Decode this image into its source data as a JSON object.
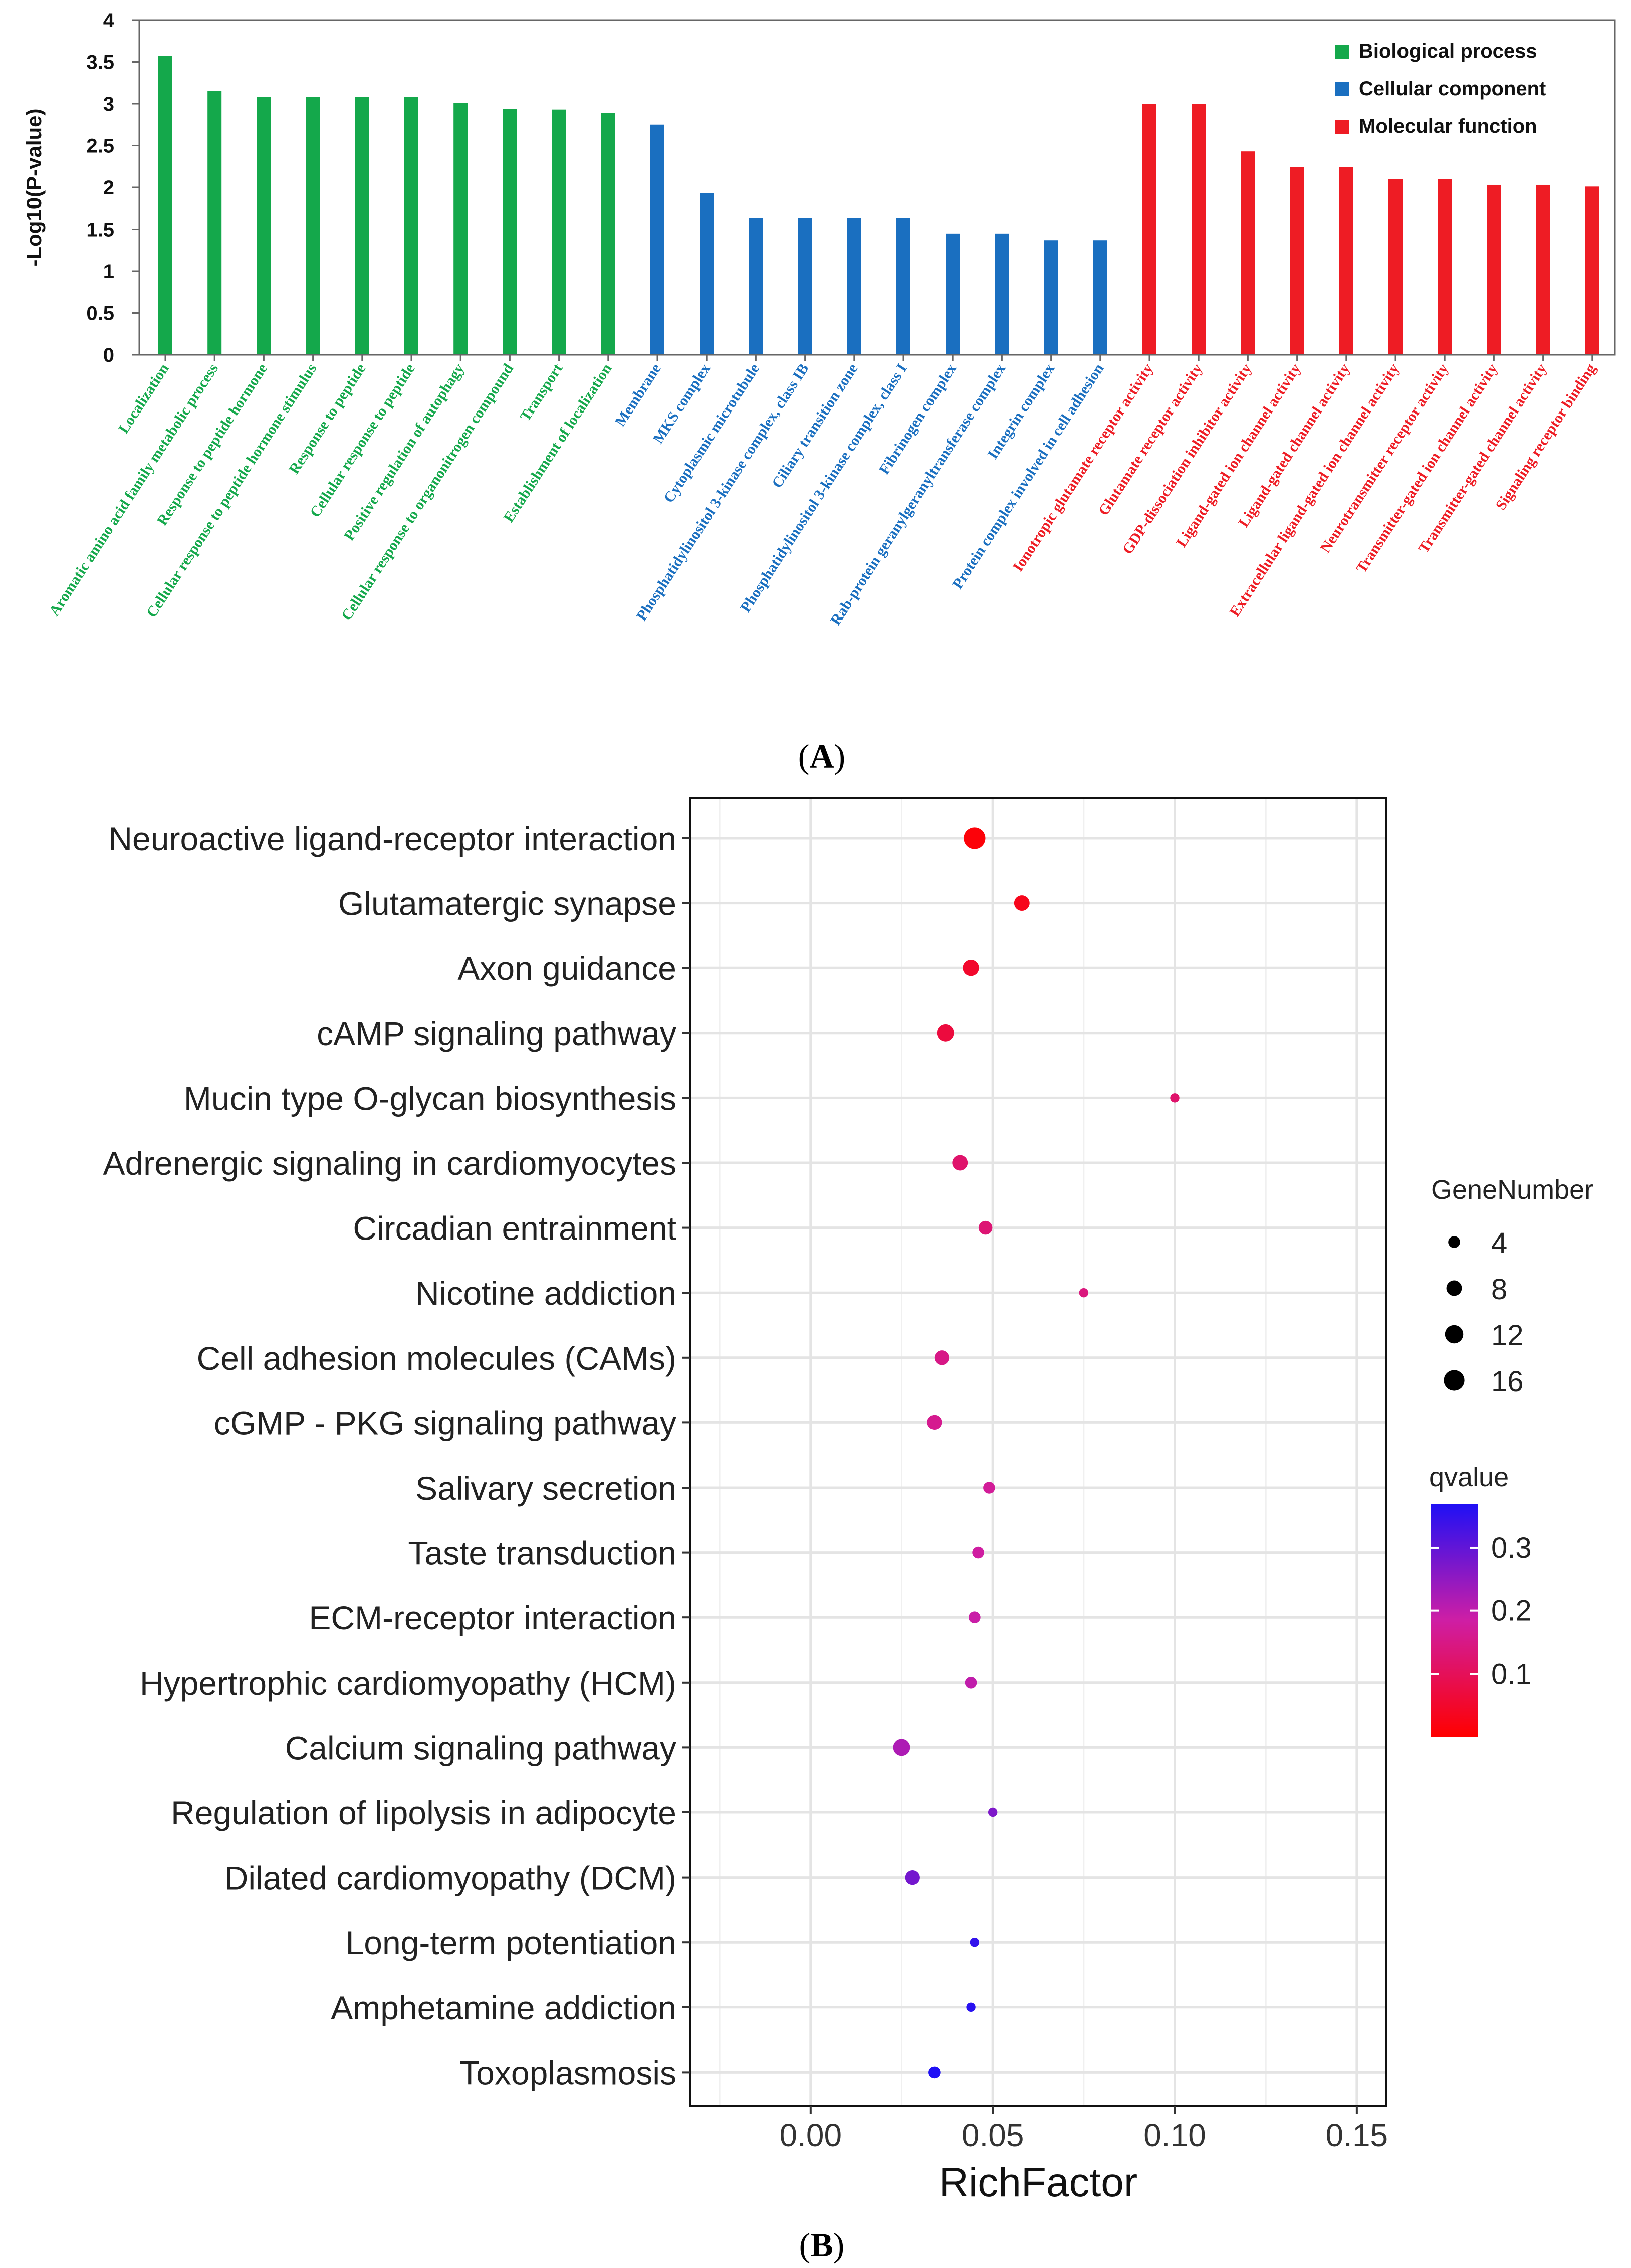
{
  "panel_labels": {
    "a": "A",
    "b": "B"
  },
  "chart_data": [
    {
      "type": "bar",
      "ylabel": "-Log10(P-value)",
      "ylim": [
        0,
        4
      ],
      "yticks": [
        "0",
        "0.5",
        "1",
        "1.5",
        "2",
        "2.5",
        "3",
        "3.5",
        "4"
      ],
      "legend_position": "top-right",
      "groups": [
        {
          "name": "Biological process",
          "color": "#14a84b"
        },
        {
          "name": "Cellular component",
          "color": "#1a6fc0"
        },
        {
          "name": "Molecular function",
          "color": "#ee1c24"
        }
      ],
      "categories": [
        "Localization",
        "Aromatic amino acid family metabolic process",
        "Response to peptide hormone",
        "Cellular response to peptide hormone stimulus",
        "Response to peptide",
        "Cellular response to peptide",
        "Positive regulation of autophagy",
        "Cellular response to organonitrogen compound",
        "Transport",
        "Establishment of localization",
        "Membrane",
        "MKS complex",
        "Cytoplasmic microtubule",
        "Phosphatidylinositol 3-kinase complex, class IB",
        "Ciliary transition zone",
        "Phosphatidylinositol 3-kinase complex, class I",
        "Fibrinogen complex",
        "Rab-protein geranylgeranyltransferase complex",
        "Integrin complex",
        "Protein complex involved in cell adhesion",
        "Ionotropic glutamate receptor activity",
        "Glutamate receptor activity",
        "GDP-dissociation inhibitor activity",
        "Ligand-gated ion channel activity",
        "Ligand-gated channel activity",
        "Extracellular ligand-gated ion channel activity",
        "Neurotransmitter receptor activity",
        "Transmitter-gated ion channel activity",
        "Transmitter-gated channel activity",
        "Signaling receptor binding"
      ],
      "group_index": [
        0,
        0,
        0,
        0,
        0,
        0,
        0,
        0,
        0,
        0,
        1,
        1,
        1,
        1,
        1,
        1,
        1,
        1,
        1,
        1,
        2,
        2,
        2,
        2,
        2,
        2,
        2,
        2,
        2,
        2
      ],
      "values": [
        3.57,
        3.15,
        3.08,
        3.08,
        3.08,
        3.08,
        3.01,
        2.94,
        2.93,
        2.89,
        2.75,
        1.93,
        1.64,
        1.64,
        1.64,
        1.64,
        1.45,
        1.45,
        1.37,
        1.37,
        3.0,
        3.0,
        2.43,
        2.24,
        2.24,
        2.1,
        2.1,
        2.03,
        2.03,
        2.01
      ]
    },
    {
      "type": "scatter",
      "xlabel": "RichFactor",
      "xlim": [
        -0.033,
        0.158
      ],
      "xticks": [
        0.0,
        0.05,
        0.1,
        0.15
      ],
      "xtick_labels": [
        "0.00",
        "0.05",
        "0.10",
        "0.15"
      ],
      "grid": true,
      "categories": [
        "Neuroactive ligand-receptor interaction",
        "Glutamatergic synapse",
        "Axon guidance",
        "cAMP signaling pathway",
        "Mucin type O-glycan biosynthesis",
        "Adrenergic signaling in cardiomyocytes",
        "Circadian entrainment",
        "Nicotine addiction",
        "Cell adhesion molecules (CAMs)",
        "cGMP - PKG signaling pathway",
        "Salivary secretion",
        "Taste transduction",
        "ECM-receptor interaction",
        "Hypertrophic cardiomyopathy (HCM)",
        "Calcium signaling pathway",
        "Regulation of lipolysis in adipocyte",
        "Dilated cardiomyopathy (DCM)",
        "Long-term potentiation",
        "Amphetamine addiction",
        "Toxoplasmosis"
      ],
      "rich_factor": [
        0.045,
        0.058,
        0.044,
        0.037,
        0.1,
        0.041,
        0.048,
        0.075,
        0.036,
        0.034,
        0.049,
        0.046,
        0.045,
        0.044,
        0.025,
        0.05,
        0.028,
        0.045,
        0.044,
        0.034
      ],
      "gene_number": [
        18,
        8,
        9,
        10,
        2,
        8,
        6,
        2,
        7,
        7,
        4,
        4,
        4,
        4,
        10,
        2,
        7,
        2,
        2,
        4
      ],
      "qvalue": [
        0.01,
        0.03,
        0.05,
        0.07,
        0.12,
        0.12,
        0.13,
        0.14,
        0.15,
        0.16,
        0.17,
        0.18,
        0.19,
        0.2,
        0.22,
        0.27,
        0.28,
        0.35,
        0.36,
        0.37
      ],
      "size_legend": {
        "title": "GeneNumber",
        "values": [
          4,
          8,
          12,
          16
        ]
      },
      "color_legend": {
        "title": "qvalue",
        "ticks": [
          0.1,
          0.2,
          0.3
        ],
        "tick_labels": [
          "0.1",
          "0.2",
          "0.3"
        ],
        "range": [
          0.0,
          0.37
        ],
        "low_color": "#ff0000",
        "mid_color": "#ce1ea5",
        "high_color": "#1f10f5"
      }
    }
  ]
}
